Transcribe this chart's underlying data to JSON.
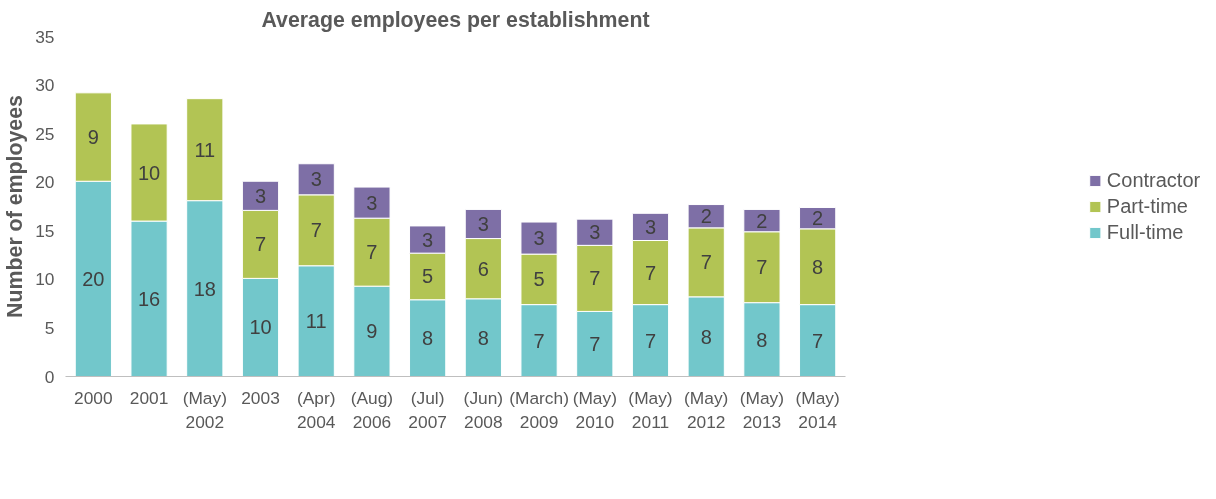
{
  "chart_data": {
    "type": "bar",
    "stacked": true,
    "title": "Average employees per establishment",
    "ylabel": "Number of employees",
    "categories": [
      "2000",
      "2001",
      "(May) 2002",
      "2003",
      "(Apr) 2004",
      "(Aug) 2006",
      "(Jul) 2007",
      "(Jun) 2008",
      "(March) 2009",
      "(May) 2010",
      "(May) 2011",
      "(May) 2012",
      "(May) 2013",
      "(May) 2014"
    ],
    "series": [
      {
        "name": "Full-time",
        "color": "#72c7cb",
        "values": [
          20.1,
          16.0,
          18.1,
          10.1,
          11.4,
          9.3,
          7.9,
          8.0,
          7.4,
          6.7,
          7.4,
          8.2,
          7.6,
          7.4
        ],
        "value_labels": [
          "20",
          "16",
          "18",
          "10",
          "11",
          "9",
          "8",
          "8",
          "7",
          "7",
          "7",
          "8",
          "8",
          "7"
        ]
      },
      {
        "name": "Part-time",
        "color": "#b2c454",
        "values": [
          9.1,
          10.0,
          10.5,
          7.0,
          7.3,
          7.0,
          4.8,
          6.2,
          5.2,
          6.8,
          6.6,
          7.1,
          7.3,
          7.8
        ],
        "value_labels": [
          "9",
          "10",
          "11",
          "7",
          "7",
          "7",
          "5",
          "6",
          "5",
          "7",
          "7",
          "7",
          "7",
          "8"
        ]
      },
      {
        "name": "Contractor",
        "color": "#7e6fa6",
        "values": [
          null,
          null,
          null,
          3.0,
          3.2,
          3.2,
          2.8,
          3.0,
          3.3,
          2.7,
          2.8,
          2.4,
          2.3,
          2.2
        ],
        "value_labels": [
          null,
          null,
          null,
          "3",
          "3",
          "3",
          "3",
          "3",
          "3",
          "3",
          "3",
          "2",
          "2",
          "2"
        ]
      }
    ],
    "ylim": [
      0,
      35
    ],
    "yticks": [
      0,
      5,
      10,
      15,
      20,
      25,
      30,
      35
    ],
    "grid": false,
    "legend": "right"
  }
}
